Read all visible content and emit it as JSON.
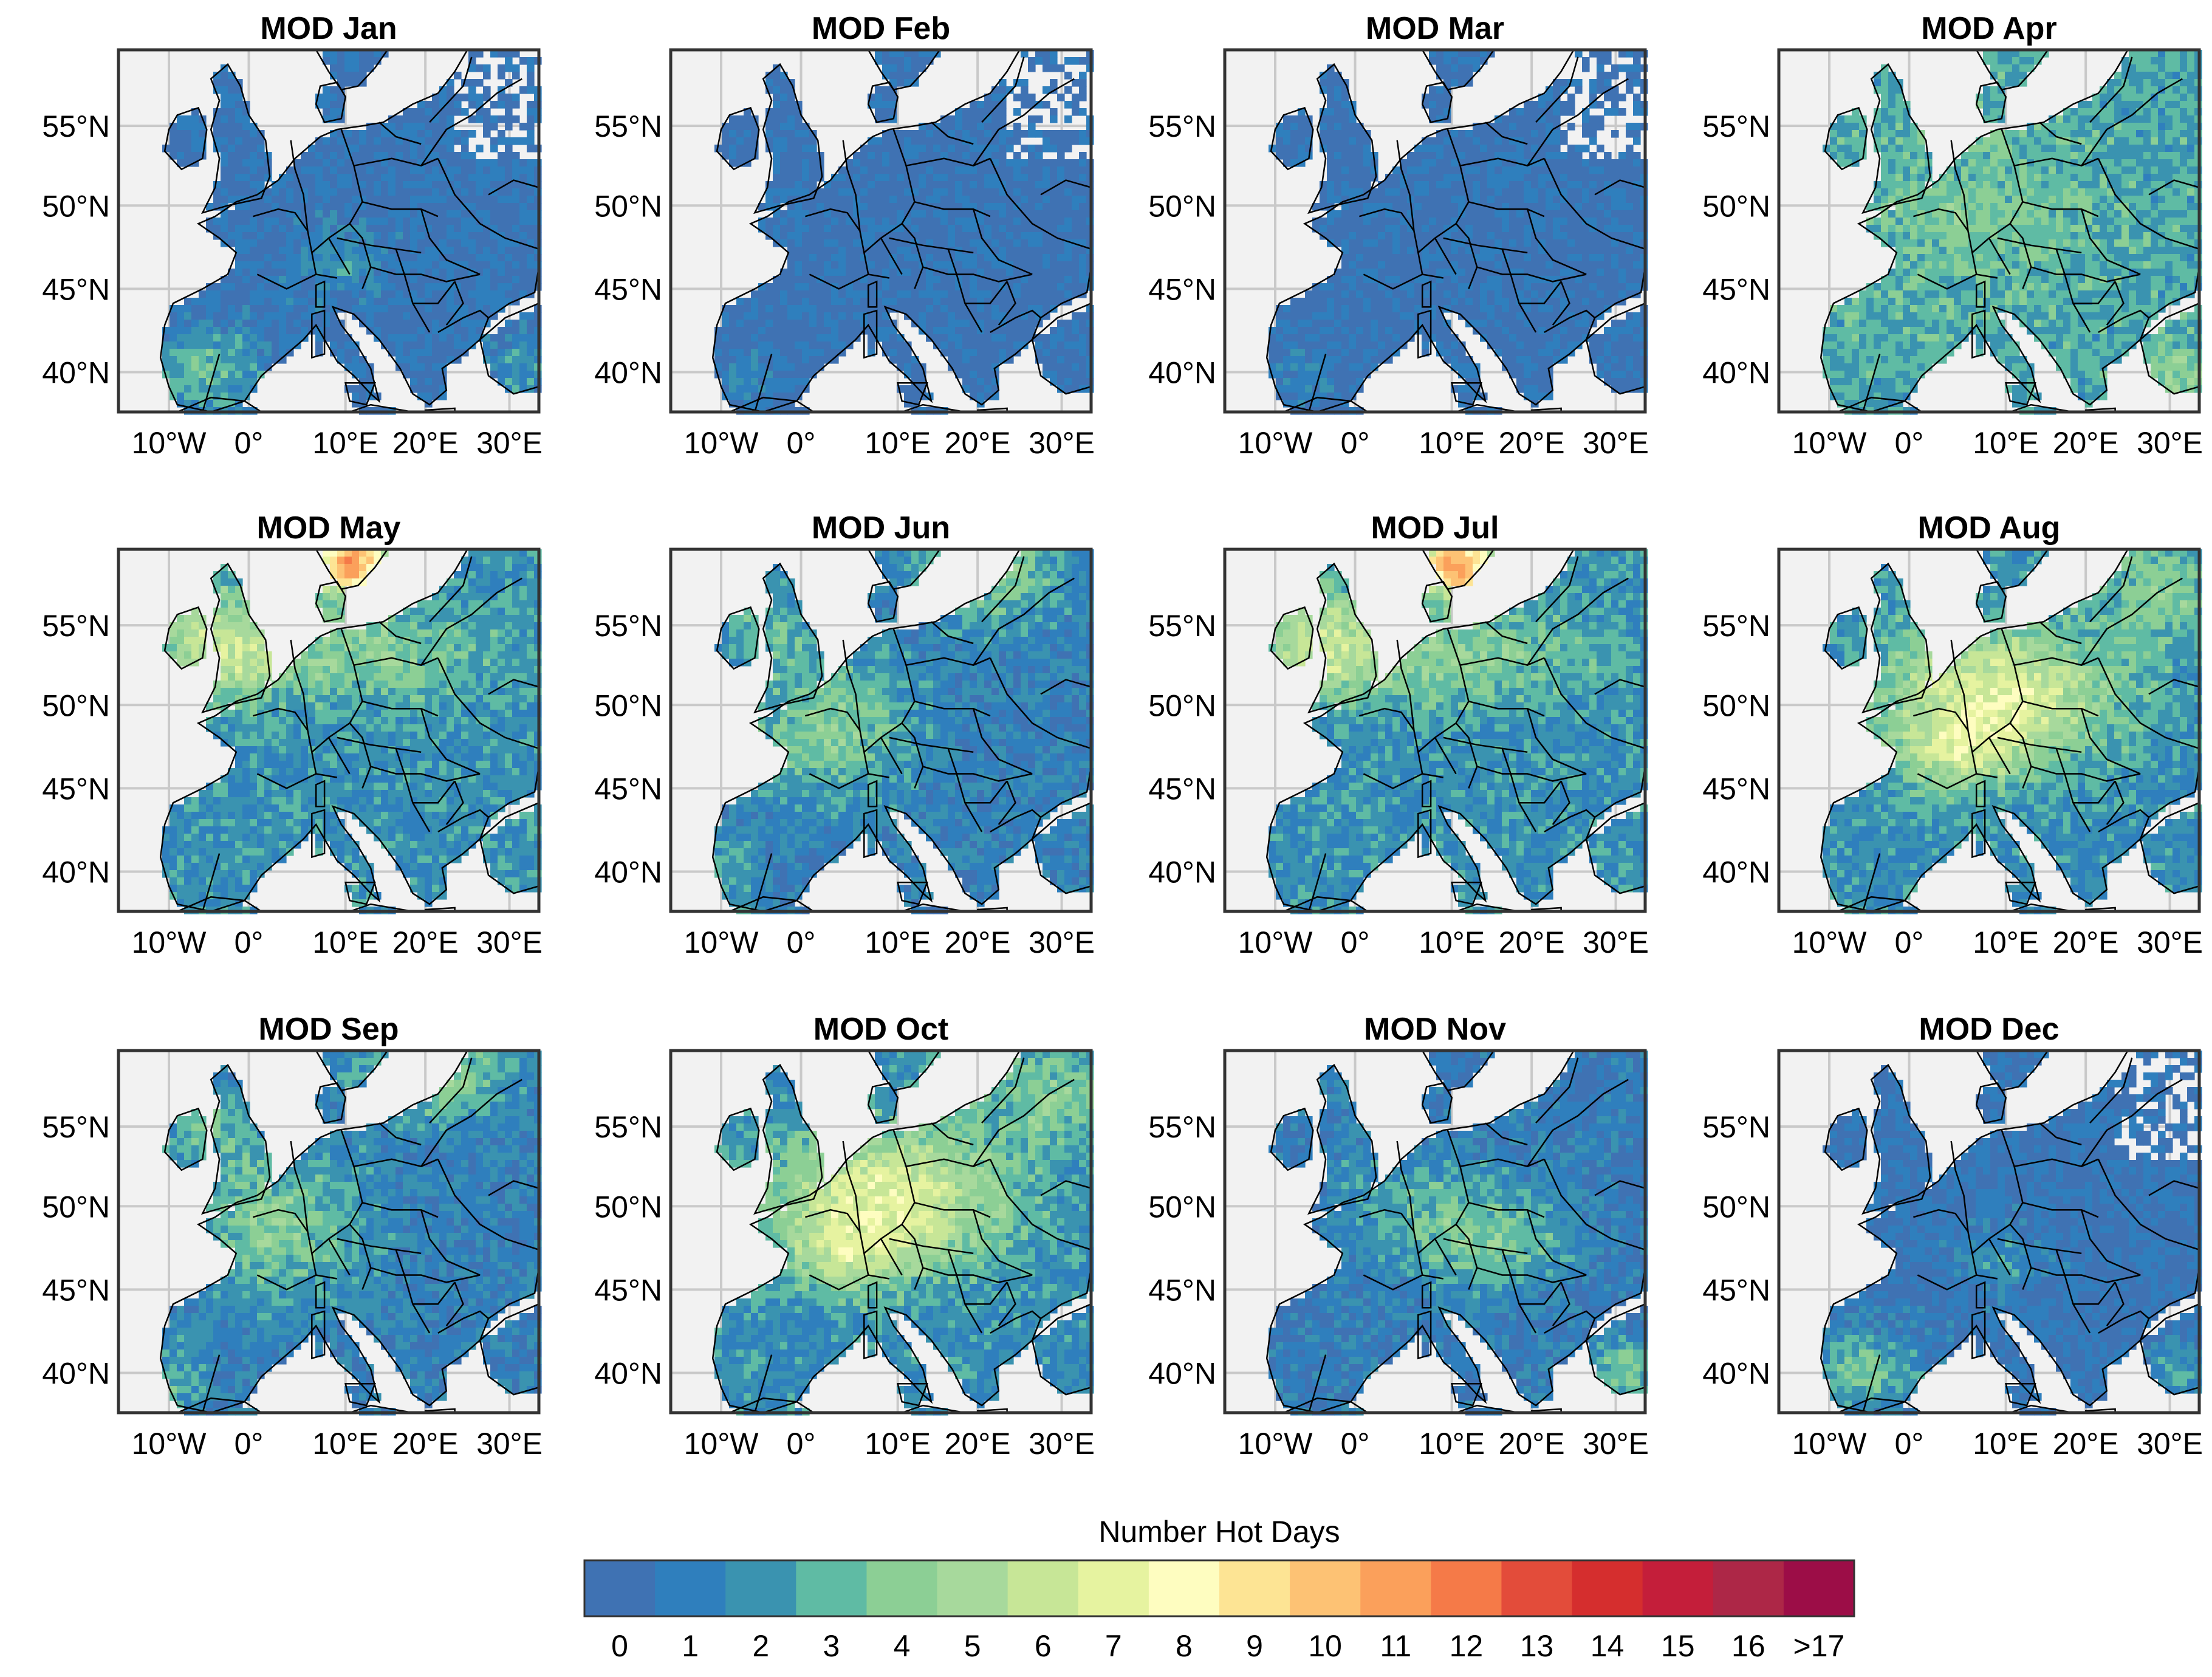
{
  "figure": {
    "panels": [
      {
        "title": "MOD Jan",
        "pattern": "sparse_south"
      },
      {
        "title": "MOD Feb",
        "pattern": "cold"
      },
      {
        "title": "MOD Mar",
        "pattern": "cold"
      },
      {
        "title": "MOD Apr",
        "pattern": "broad_warm"
      },
      {
        "title": "MOD May",
        "pattern": "north_hot"
      },
      {
        "title": "MOD Jun",
        "pattern": "west_warm"
      },
      {
        "title": "MOD Jul",
        "pattern": "north_hot"
      },
      {
        "title": "MOD Aug",
        "pattern": "central_hot"
      },
      {
        "title": "MOD Sep",
        "pattern": "west_warm"
      },
      {
        "title": "MOD Oct",
        "pattern": "central_hot"
      },
      {
        "title": "MOD Nov",
        "pattern": "east_warm"
      },
      {
        "title": "MOD Dec",
        "pattern": "sparse_south"
      }
    ],
    "lat_ticks": [
      "55°N",
      "50°N",
      "45°N",
      "40°N"
    ],
    "lon_ticks": [
      "10°W",
      "0°",
      "10°E",
      "20°E",
      "30°E"
    ],
    "colorbar": {
      "title": "Number Hot Days",
      "labels": [
        "0",
        "1",
        "2",
        "3",
        "4",
        "5",
        "6",
        "7",
        "8",
        "9",
        "10",
        "11",
        "12",
        "13",
        "14",
        "15",
        "16",
        ">17"
      ],
      "colors": [
        "#3f72b3",
        "#2f7fbd",
        "#3a93b0",
        "#5fbba4",
        "#8ccf95",
        "#a7d99c",
        "#c7e697",
        "#e6f3a0",
        "#fefdc0",
        "#fde494",
        "#fdc274",
        "#fba05b",
        "#f57a48",
        "#e34c3a",
        "#d52e2e",
        "#c41e3a",
        "#ad2747",
        "#9c0d47"
      ]
    },
    "colors": {
      "land_base": "#3f72b3",
      "ocean": "#f2f2f2",
      "grid": "#c9c9c9",
      "border": "#000000"
    }
  }
}
